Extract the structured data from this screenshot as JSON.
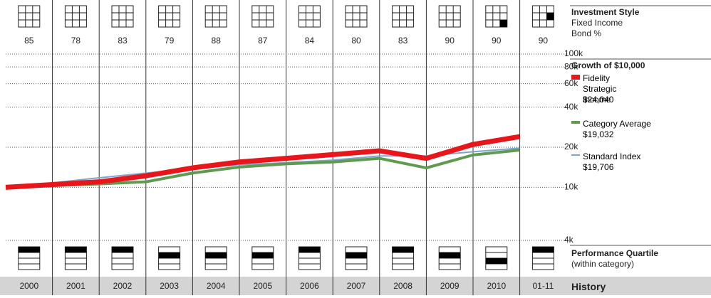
{
  "chart_data": {
    "type": "line",
    "categories": [
      "2000",
      "2001",
      "2002",
      "2003",
      "2004",
      "2005",
      "2006",
      "2007",
      "2008",
      "2009",
      "2010",
      "01-11"
    ],
    "style_title": "Investment Style",
    "style_subtitle": "Fixed Income",
    "style_metric": "Bond %",
    "bond_pct": [
      85,
      78,
      83,
      79,
      88,
      87,
      84,
      80,
      83,
      90,
      90,
      90
    ],
    "style_box": [
      null,
      null,
      null,
      null,
      null,
      null,
      null,
      null,
      null,
      null,
      8,
      5
    ],
    "growth_title": "Growth of $10,000",
    "log_scale": true,
    "ylim": [
      4000,
      100000
    ],
    "yticks": [
      {
        "value": 100000,
        "label": "100k"
      },
      {
        "value": 80000,
        "label": "80k"
      },
      {
        "value": 60000,
        "label": "60k"
      },
      {
        "value": 40000,
        "label": "40k"
      },
      {
        "value": 20000,
        "label": "20k"
      },
      {
        "value": 10000,
        "label": "10k"
      },
      {
        "value": 4000,
        "label": "4k"
      }
    ],
    "grid": true,
    "series": [
      {
        "name": "Fidelity Strategic Income",
        "color": "#e8161b",
        "values": [
          10000,
          10500,
          11000,
          12200,
          14000,
          15500,
          16500,
          17600,
          18800,
          16500,
          21000,
          24040
        ],
        "value_labels": [
          null,
          null,
          null,
          null,
          null,
          null,
          null,
          null,
          null,
          null,
          null,
          "$24,040"
        ]
      },
      {
        "name": "Category Average",
        "color": "#5f9a4f",
        "values": [
          10000,
          10300,
          10600,
          11000,
          12800,
          14200,
          15000,
          15500,
          16500,
          14000,
          17500,
          19032
        ],
        "value_labels": [
          null,
          null,
          null,
          null,
          null,
          null,
          null,
          null,
          null,
          null,
          null,
          "$19,032"
        ]
      },
      {
        "name": "Standard Index",
        "color": "#7fa4d0",
        "values": [
          10000,
          10800,
          11800,
          12800,
          13800,
          14800,
          15300,
          16000,
          17200,
          17200,
          18500,
          19706
        ],
        "value_labels": [
          null,
          null,
          null,
          null,
          null,
          null,
          null,
          null,
          null,
          null,
          null,
          "$19,706"
        ]
      }
    ],
    "quartile_title": "Performance Quartile",
    "quartile_subtitle": "(within category)",
    "quartiles": [
      1,
      1,
      1,
      2,
      2,
      2,
      1,
      2,
      1,
      2,
      3,
      1
    ],
    "history_title": "History"
  }
}
